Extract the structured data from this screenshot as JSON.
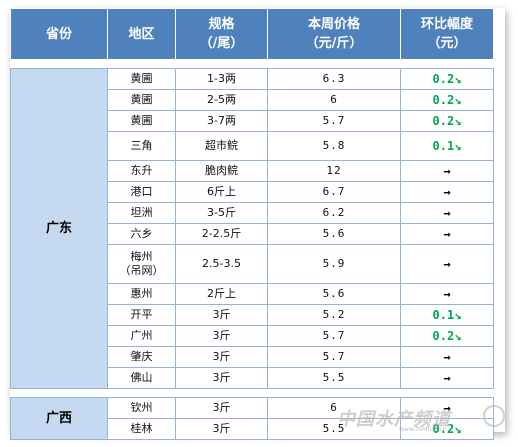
{
  "table": {
    "headers": {
      "province": "省份",
      "region": "地区",
      "spec": [
        "规格",
        "（/尾）"
      ],
      "price": [
        "本周价格",
        "（元/斤）"
      ],
      "change": [
        "环比幅度",
        "（元）"
      ]
    },
    "groups": [
      {
        "province": "广东",
        "rows": [
          {
            "region": "黄圃",
            "spec": "1-3两",
            "price": "6.3",
            "change": "0.2↘",
            "trend": "down"
          },
          {
            "region": "黄圃",
            "spec": "2-5两",
            "price": "6",
            "change": "0.2↘",
            "trend": "down"
          },
          {
            "region": "黄圃",
            "spec": "3-7两",
            "price": "5.7",
            "change": "0.2↘",
            "trend": "down"
          },
          {
            "region": "三角",
            "spec": "超市鲩",
            "price": "5.8",
            "change": "0.1↘",
            "trend": "down"
          },
          {
            "region": "东升",
            "spec": "脆肉鲩",
            "price": "12",
            "change": "→",
            "trend": "flat"
          },
          {
            "region": "港口",
            "spec": "6斤上",
            "price": "6.7",
            "change": "→",
            "trend": "flat"
          },
          {
            "region": "坦洲",
            "spec": "3-5斤",
            "price": "6.2",
            "change": "→",
            "trend": "flat"
          },
          {
            "region": "六乡",
            "spec": "2-2.5斤",
            "price": "5.6",
            "change": "→",
            "trend": "flat"
          },
          {
            "region": "梅州",
            "region2": "（吊网）",
            "spec": "2.5-3.5",
            "price": "5.9",
            "change": "→",
            "trend": "flat"
          },
          {
            "region": "惠州",
            "spec": "2斤上",
            "price": "5.6",
            "change": "→",
            "trend": "flat"
          },
          {
            "region": "开平",
            "spec": "3斤",
            "price": "5.2",
            "change": "0.1↘",
            "trend": "down"
          },
          {
            "region": "广州",
            "spec": "3斤",
            "price": "5.7",
            "change": "0.2↘",
            "trend": "down"
          },
          {
            "region": "肇庆",
            "spec": "3斤",
            "price": "5.7",
            "change": "→",
            "trend": "flat"
          },
          {
            "region": "佛山",
            "spec": "3斤",
            "price": "5.5",
            "change": "→",
            "trend": "flat"
          }
        ]
      },
      {
        "province": "广西",
        "rows": [
          {
            "region": "钦州",
            "spec": "3斤",
            "price": "6",
            "change": "→",
            "trend": "flat"
          },
          {
            "region": "桂林",
            "spec": "3斤",
            "price": "5.5",
            "change": "0.2↘",
            "trend": "down"
          }
        ]
      }
    ]
  },
  "watermark": {
    "text": "中国水产频道",
    "url": "www.fishfirst.cn"
  },
  "colors": {
    "header_bg": "#4f81bd",
    "province_bg": "#c5d9f1",
    "border": "#95b3d7",
    "down": "#00a650"
  }
}
